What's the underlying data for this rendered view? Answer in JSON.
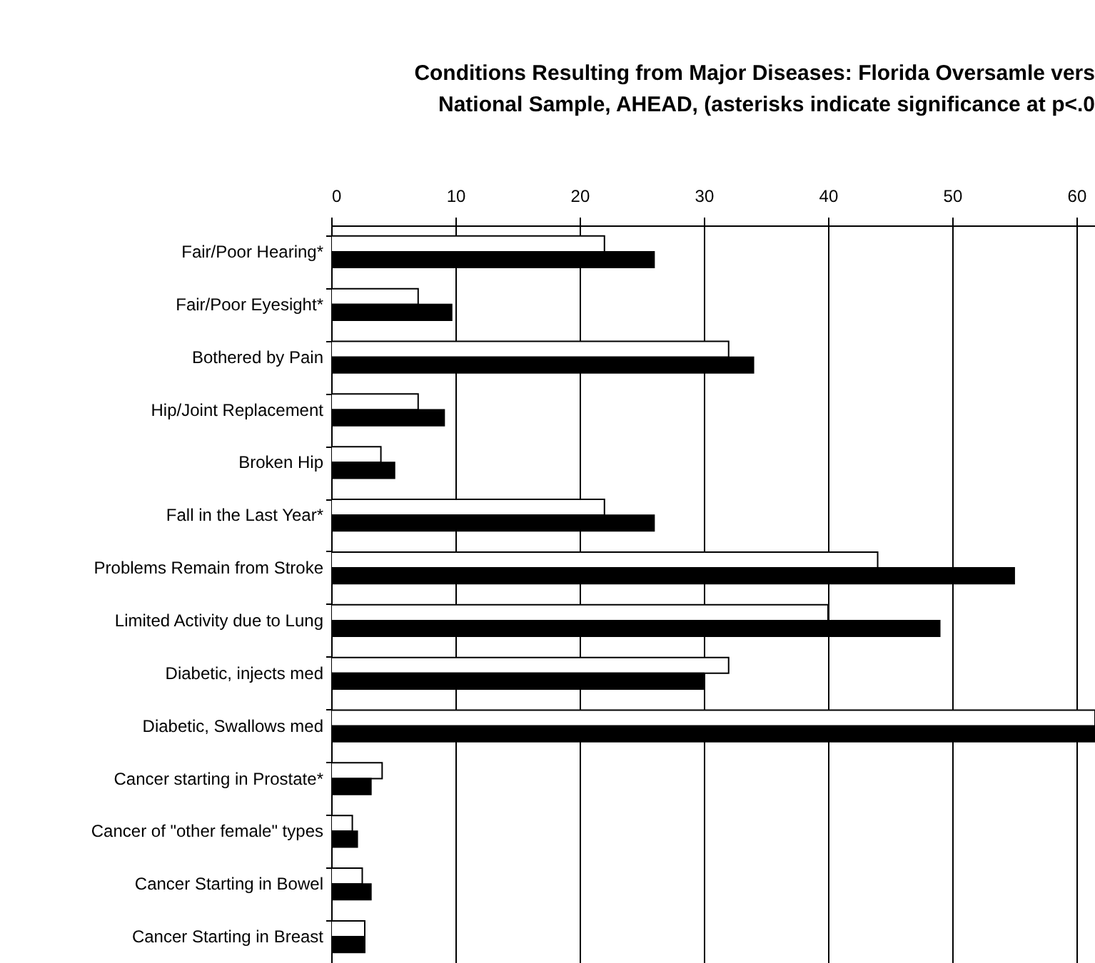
{
  "chart_data": {
    "type": "bar",
    "orientation": "horizontal",
    "title": [
      "Conditions Resulting from Major Diseases: Florida Oversamle vers",
      "National Sample, AHEAD, (asterisks indicate significance at p<.0"
    ],
    "categories": [
      "Fair/Poor Hearing*",
      "Fair/Poor Eyesight*",
      "Bothered by Pain",
      "Hip/Joint Replacement",
      "Broken Hip",
      "Fall in the Last Year*",
      "Problems Remain from Stroke",
      "Limited Activity due to Lung",
      "Diabetic, injects med",
      "Diabetic, Swallows med",
      "Cancer starting in Prostate*",
      "Cancer of \"other female\" types",
      "Cancer Starting in Bowel",
      "Cancer Starting in Breast"
    ],
    "series": [
      {
        "color": "#ffffff",
        "values": [
          22,
          7,
          32,
          7,
          4,
          22,
          44,
          40,
          32,
          61.5,
          4.1,
          1.7,
          2.5,
          2.7
        ]
      },
      {
        "color": "#000000",
        "values": [
          26,
          9.7,
          34,
          9.1,
          5.1,
          26,
          55,
          49,
          30,
          61.5,
          3.2,
          2.1,
          3.2,
          2.7
        ]
      }
    ],
    "xlim": [
      0,
      61.5
    ],
    "xticks": [
      0,
      10,
      20,
      30,
      40,
      50,
      60
    ],
    "grid": "x",
    "legend": false
  }
}
